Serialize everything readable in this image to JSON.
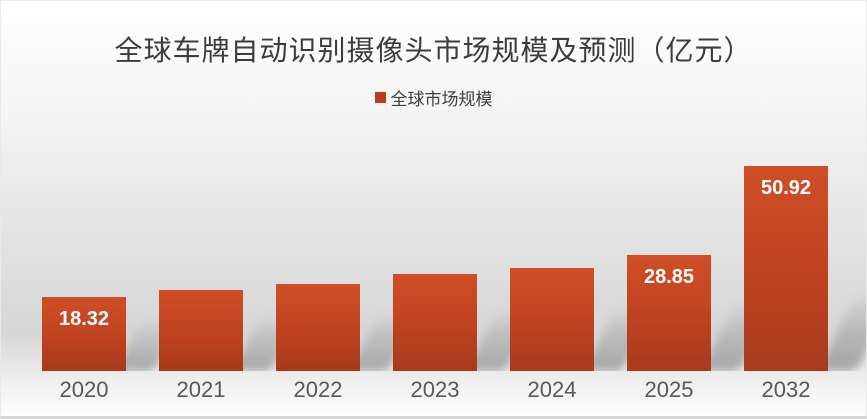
{
  "chart_data": {
    "type": "bar",
    "title": "全球车牌自动识别摄像头市场规模及预测（亿元）",
    "legend": [
      {
        "label": "全球市场规模",
        "color": "#ba3c1f"
      }
    ],
    "legend_position": "top",
    "categories": [
      "2020",
      "2021",
      "2022",
      "2023",
      "2024",
      "2025",
      "2032"
    ],
    "series": [
      {
        "name": "全球市场规模",
        "values": [
          18.32,
          20.0,
          21.5,
          24.0,
          25.7,
          28.85,
          50.92
        ]
      }
    ],
    "data_labels": [
      "18.32",
      "",
      "",
      "",
      "",
      "28.85",
      "50.92"
    ],
    "ylim": [
      0,
      55
    ],
    "grid": false,
    "y_axis_visible": false,
    "x_axis_line_visible": false,
    "colors": {
      "bar_gradient_top": "#cf4e28",
      "bar_gradient_mid": "#c24420",
      "bar_gradient_bottom": "#a83a1e",
      "value_label": "#ffffff",
      "category_label": "#595959",
      "title": "#3c3c3c",
      "background_gray": "#d6d6d6"
    }
  }
}
